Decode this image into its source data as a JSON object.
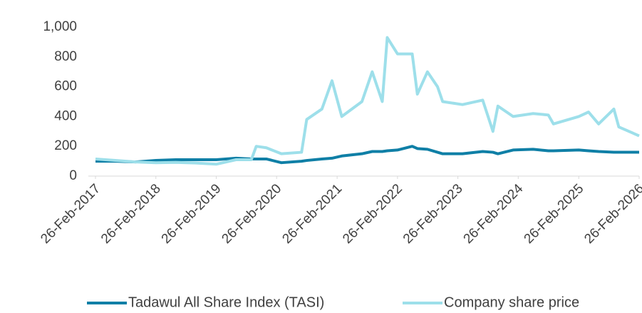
{
  "chart_data": {
    "type": "line",
    "x": [
      "2017-02-26",
      "2017-06-26",
      "2017-10-26",
      "2018-02-26",
      "2018-06-26",
      "2018-10-26",
      "2019-02-26",
      "2019-06-26",
      "2019-09-26",
      "2019-10-26",
      "2019-12-26",
      "2020-03-26",
      "2020-07-26",
      "2020-08-26",
      "2020-11-26",
      "2021-01-26",
      "2021-03-26",
      "2021-07-26",
      "2021-09-26",
      "2021-11-26",
      "2021-12-26",
      "2022-02-26",
      "2022-05-26",
      "2022-06-26",
      "2022-08-26",
      "2022-10-26",
      "2022-11-26",
      "2023-03-26",
      "2023-07-26",
      "2023-09-26",
      "2023-10-26",
      "2024-01-26",
      "2024-05-26",
      "2024-08-26",
      "2024-09-26",
      "2025-02-26",
      "2025-04-26",
      "2025-06-26",
      "2025-09-26",
      "2025-10-26",
      "2026-02-26"
    ],
    "series": [
      {
        "name": "Tadawul All Share Index (TASI)",
        "color": "#0f7fa6",
        "values": [
          100,
          100,
          95,
          105,
          110,
          110,
          110,
          120,
          115,
          115,
          115,
          90,
          100,
          105,
          115,
          120,
          135,
          150,
          165,
          165,
          170,
          175,
          200,
          185,
          180,
          160,
          150,
          150,
          165,
          160,
          150,
          175,
          180,
          170,
          170,
          175,
          170,
          165,
          160,
          160,
          160
        ]
      },
      {
        "name": "Company share price",
        "color": "#9ddfea",
        "values": [
          115,
          105,
          95,
          90,
          92,
          88,
          80,
          110,
          110,
          200,
          190,
          150,
          160,
          380,
          450,
          640,
          400,
          500,
          700,
          500,
          930,
          820,
          820,
          550,
          700,
          600,
          500,
          480,
          510,
          300,
          470,
          400,
          420,
          410,
          350,
          400,
          430,
          350,
          450,
          330,
          270
        ]
      }
    ],
    "xlim": [
      "2017-02-26",
      "2026-02-26"
    ],
    "xticks": [
      {
        "value": "2017-02-26",
        "label": "26-Feb-2017"
      },
      {
        "value": "2018-02-26",
        "label": "26-Feb-2018"
      },
      {
        "value": "2019-02-26",
        "label": "26-Feb-2019"
      },
      {
        "value": "2020-02-26",
        "label": "26-Feb-2020"
      },
      {
        "value": "2021-02-26",
        "label": "26-Feb-2021"
      },
      {
        "value": "2022-02-26",
        "label": "26-Feb-2022"
      },
      {
        "value": "2023-02-26",
        "label": "26-Feb-2023"
      },
      {
        "value": "2024-02-26",
        "label": "26-Feb-2024"
      },
      {
        "value": "2025-02-26",
        "label": "26-Feb-2025"
      },
      {
        "value": "2026-02-26",
        "label": "26-Feb-2026"
      }
    ],
    "ylim": [
      0,
      1000
    ],
    "yticks": [
      0,
      200,
      400,
      600,
      800,
      {
        "value": 1000,
        "label": "1,000"
      }
    ],
    "grid": false,
    "legend": "bottom"
  }
}
